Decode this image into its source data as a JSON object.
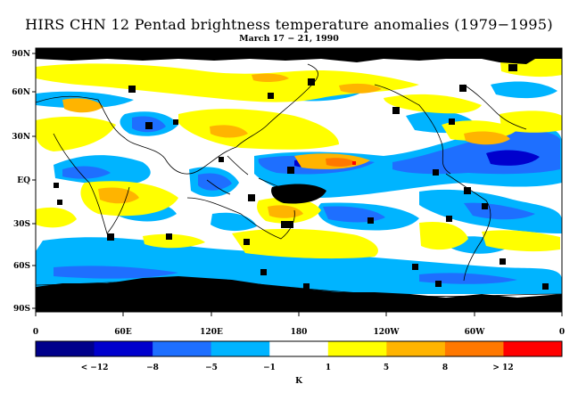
{
  "header": {
    "title": "HIRS CHN 12 Pentad brightness temperature anomalies (1979−1995)",
    "subtitle": "March 17 − 21, 1990"
  },
  "map": {
    "lat_labels": [
      "90N",
      "60N",
      "30N",
      "EQ",
      "30S",
      "60S",
      "90S"
    ],
    "lon_labels": [
      "0",
      "60E",
      "120E",
      "180",
      "120W",
      "60W",
      "0"
    ]
  },
  "colorbar": {
    "unit_label": "K",
    "tick_labels": [
      "< −12",
      "−8",
      "−5",
      "−1",
      "1",
      "5",
      "8",
      "> 12"
    ],
    "colors": [
      "#00008b",
      "#0000cd",
      "#1e6fff",
      "#00b4ff",
      "#ffffff",
      "#ffff00",
      "#ffb400",
      "#ff7800",
      "#ff0000"
    ]
  },
  "palette": {
    "strong_neg": "#1e6fff",
    "neg": "#00b4ff",
    "pos": "#ffff00",
    "strong_pos": "#ffb400",
    "peak_pos": "#ff7800",
    "deep_neg": "#0000cd",
    "missing": "#000000"
  }
}
